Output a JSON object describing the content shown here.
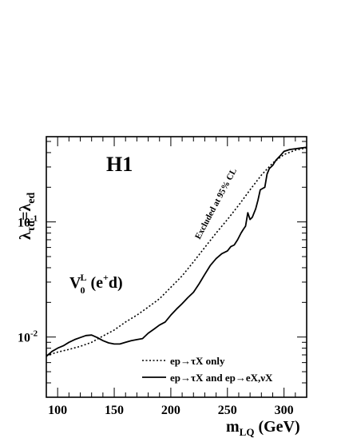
{
  "chart_data": {
    "type": "line",
    "scale": "log-y",
    "title": "H1",
    "xlabel": {
      "main": "m",
      "sub": "LQ",
      "tail": " (GeV)"
    },
    "ylabel": {
      "lambda1": "λ",
      "sub1": "τd",
      "eq": "=",
      "lambda2": "λ",
      "sub2": "ed"
    },
    "xlim": [
      90,
      320
    ],
    "ylim": [
      0.003,
      0.55
    ],
    "x_ticks": [
      {
        "value": 100,
        "label": "100"
      },
      {
        "value": 150,
        "label": "150"
      },
      {
        "value": 200,
        "label": "200"
      },
      {
        "value": 250,
        "label": "250"
      },
      {
        "value": 300,
        "label": "300"
      }
    ],
    "y_ticks": [
      {
        "value": 0.01,
        "base": "10",
        "exp": "-2"
      },
      {
        "value": 0.1,
        "base": "10",
        "exp": "-1"
      }
    ],
    "grid": false,
    "legend_position": "bottom-right",
    "annotations": {
      "excluded": "Excluded at 95% CL",
      "model": {
        "base": "V",
        "sub": "0",
        "sup": "L",
        "tail_open": " (e",
        "charge": "+",
        "tail_close": "d)"
      }
    },
    "series": [
      {
        "name": "ep→τX only",
        "style": "dotted",
        "points": [
          [
            90,
            0.0069
          ],
          [
            100,
            0.0074
          ],
          [
            110,
            0.0078
          ],
          [
            120,
            0.0083
          ],
          [
            130,
            0.009
          ],
          [
            140,
            0.0102
          ],
          [
            150,
            0.0115
          ],
          [
            160,
            0.0135
          ],
          [
            170,
            0.0155
          ],
          [
            180,
            0.0182
          ],
          [
            190,
            0.0215
          ],
          [
            200,
            0.027
          ],
          [
            210,
            0.034
          ],
          [
            220,
            0.045
          ],
          [
            230,
            0.06
          ],
          [
            240,
            0.08
          ],
          [
            250,
            0.105
          ],
          [
            260,
            0.14
          ],
          [
            270,
            0.19
          ],
          [
            280,
            0.255
          ],
          [
            290,
            0.325
          ],
          [
            300,
            0.385
          ],
          [
            310,
            0.42
          ],
          [
            320,
            0.44
          ]
        ]
      },
      {
        "name": "ep→τX and ep→eX,νX",
        "style": "solid",
        "points": [
          [
            90,
            0.0068
          ],
          [
            95,
            0.0075
          ],
          [
            100,
            0.008
          ],
          [
            105,
            0.0084
          ],
          [
            110,
            0.009
          ],
          [
            115,
            0.0095
          ],
          [
            120,
            0.0099
          ],
          [
            125,
            0.0103
          ],
          [
            130,
            0.0104
          ],
          [
            135,
            0.0099
          ],
          [
            140,
            0.0093
          ],
          [
            145,
            0.0089
          ],
          [
            150,
            0.0087
          ],
          [
            155,
            0.0087
          ],
          [
            160,
            0.009
          ],
          [
            165,
            0.0093
          ],
          [
            170,
            0.0095
          ],
          [
            175,
            0.0097
          ],
          [
            180,
            0.0108
          ],
          [
            185,
            0.0117
          ],
          [
            190,
            0.0127
          ],
          [
            195,
            0.0135
          ],
          [
            200,
            0.0155
          ],
          [
            205,
            0.0175
          ],
          [
            210,
            0.0195
          ],
          [
            215,
            0.022
          ],
          [
            220,
            0.0245
          ],
          [
            225,
            0.029
          ],
          [
            230,
            0.035
          ],
          [
            235,
            0.042
          ],
          [
            240,
            0.048
          ],
          [
            245,
            0.053
          ],
          [
            250,
            0.056
          ],
          [
            253,
            0.061
          ],
          [
            256,
            0.063
          ],
          [
            259,
            0.07
          ],
          [
            262,
            0.08
          ],
          [
            264,
            0.086
          ],
          [
            266,
            0.092
          ],
          [
            268,
            0.12
          ],
          [
            270,
            0.105
          ],
          [
            272,
            0.11
          ],
          [
            275,
            0.13
          ],
          [
            277,
            0.155
          ],
          [
            279,
            0.19
          ],
          [
            281,
            0.195
          ],
          [
            283,
            0.2
          ],
          [
            285,
            0.26
          ],
          [
            287,
            0.29
          ],
          [
            290,
            0.31
          ],
          [
            293,
            0.345
          ],
          [
            296,
            0.37
          ],
          [
            300,
            0.41
          ],
          [
            305,
            0.425
          ],
          [
            310,
            0.432
          ],
          [
            315,
            0.438
          ],
          [
            320,
            0.445
          ]
        ]
      }
    ]
  }
}
